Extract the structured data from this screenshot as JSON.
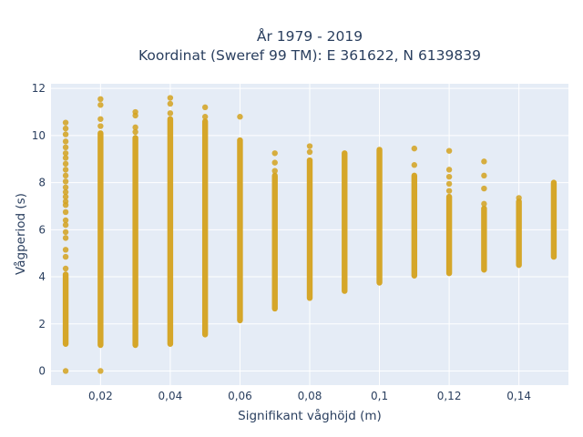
{
  "chart_data": {
    "type": "scatter",
    "title_lines": [
      "År 1979 - 2019",
      "Koordinat (Sweref 99 TM): E 361622, N 6139839"
    ],
    "xlabel": "Signifikant våghöjd (m)",
    "ylabel": "Vågperiod (s)",
    "xlim": [
      0.0058,
      0.1542
    ],
    "ylim": [
      -0.6,
      12.2
    ],
    "x_ticks": [
      {
        "value": 0.02,
        "label": "0,02"
      },
      {
        "value": 0.04,
        "label": "0,04"
      },
      {
        "value": 0.06,
        "label": "0,06"
      },
      {
        "value": 0.08,
        "label": "0,08"
      },
      {
        "value": 0.1,
        "label": "0,1"
      },
      {
        "value": 0.12,
        "label": "0,12"
      },
      {
        "value": 0.14,
        "label": "0,14"
      }
    ],
    "y_ticks": [
      {
        "value": 0,
        "label": "0"
      },
      {
        "value": 2,
        "label": "2"
      },
      {
        "value": 4,
        "label": "4"
      },
      {
        "value": 6,
        "label": "6"
      },
      {
        "value": 8,
        "label": "8"
      },
      {
        "value": 10,
        "label": "10"
      },
      {
        "value": 12,
        "label": "12"
      }
    ],
    "grid": true,
    "marker_color": "#d4a21e",
    "plot_background": "#e5ecf6",
    "grid_color": "#ffffff",
    "series": [
      {
        "columns": [
          {
            "x": 0.01,
            "y_min": 1.15,
            "y_max": 4.1,
            "outliers": [
              0.0,
              4.35,
              4.85,
              5.15,
              5.65,
              5.9,
              6.2,
              6.4,
              6.75,
              7.05,
              7.2,
              7.4,
              7.6,
              7.8,
              8.05,
              8.3,
              8.55,
              8.8,
              9.05,
              9.25,
              9.5,
              9.75,
              10.05,
              10.3,
              10.55
            ]
          },
          {
            "x": 0.02,
            "y_min": 1.1,
            "y_max": 10.1,
            "outliers": [
              0.0,
              10.4,
              10.7,
              11.3,
              11.55
            ]
          },
          {
            "x": 0.03,
            "y_min": 1.1,
            "y_max": 9.9,
            "outliers": [
              10.15,
              10.35,
              10.85,
              11.0
            ]
          },
          {
            "x": 0.04,
            "y_min": 1.15,
            "y_max": 10.7,
            "outliers": [
              10.95,
              11.35,
              11.6
            ]
          },
          {
            "x": 0.05,
            "y_min": 1.55,
            "y_max": 10.6,
            "outliers": [
              10.8,
              11.2
            ]
          },
          {
            "x": 0.06,
            "y_min": 2.15,
            "y_max": 9.8,
            "outliers": [
              10.8
            ]
          },
          {
            "x": 0.07,
            "y_min": 2.65,
            "y_max": 8.3,
            "outliers": [
              8.5,
              8.85,
              9.25
            ]
          },
          {
            "x": 0.08,
            "y_min": 3.1,
            "y_max": 8.95,
            "outliers": [
              9.3,
              9.55
            ]
          },
          {
            "x": 0.09,
            "y_min": 3.4,
            "y_max": 9.25,
            "outliers": []
          },
          {
            "x": 0.1,
            "y_min": 3.75,
            "y_max": 9.4,
            "outliers": []
          },
          {
            "x": 0.11,
            "y_min": 4.05,
            "y_max": 8.3,
            "outliers": [
              8.75,
              9.45
            ]
          },
          {
            "x": 0.12,
            "y_min": 4.15,
            "y_max": 7.4,
            "outliers": [
              7.65,
              7.95,
              8.25,
              8.55,
              9.35
            ]
          },
          {
            "x": 0.13,
            "y_min": 4.3,
            "y_max": 6.9,
            "outliers": [
              7.1,
              7.75,
              8.3,
              8.9
            ]
          },
          {
            "x": 0.14,
            "y_min": 4.5,
            "y_max": 7.2,
            "outliers": [
              7.35
            ]
          },
          {
            "x": 0.15,
            "y_min": 4.85,
            "y_max": 8.0,
            "outliers": []
          }
        ]
      }
    ]
  }
}
